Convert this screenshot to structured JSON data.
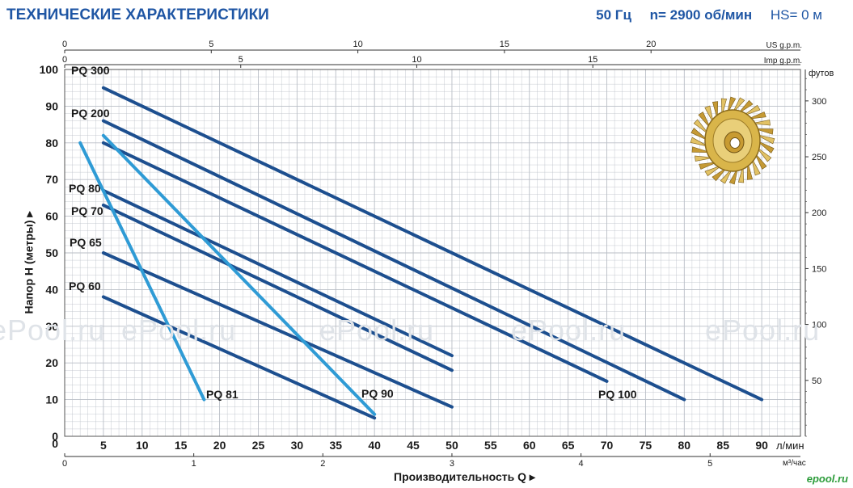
{
  "header": {
    "title": "ТЕХНИЧЕСКИЕ ХАРАКТЕРИСТИКИ",
    "frequency": "50 Гц",
    "speed": "n= 2900 об/мин",
    "suction": "HS= 0 м"
  },
  "watermark_text": "ePool.ru",
  "brand_text": "epool.ru",
  "colors": {
    "dark_series": "#1d4f8f",
    "light_series": "#2f9bd5",
    "grid": "#b9bec6",
    "title": "#1f56a4"
  },
  "chart_data": {
    "type": "line",
    "xlabel": "Производительность Q",
    "ylabel": "Напор H (метры)",
    "xlim": [
      0,
      95
    ],
    "ylim": [
      0,
      100
    ],
    "grid": true,
    "x_ticks": [
      0,
      5,
      10,
      15,
      20,
      25,
      30,
      35,
      40,
      45,
      50,
      55,
      60,
      65,
      70,
      75,
      80,
      85,
      90
    ],
    "x_unit": "л/мин",
    "y_ticks": [
      0,
      10,
      20,
      30,
      40,
      50,
      60,
      70,
      80,
      90,
      100
    ],
    "secondary_axes": [
      {
        "unit": "м³/час",
        "ticks": [
          "0",
          "1",
          "2",
          "3",
          "4",
          "5"
        ],
        "values": [
          0,
          1,
          2,
          3,
          4,
          5
        ]
      },
      {
        "unit": "US g.p.m.",
        "ticks": [
          "0",
          "5",
          "10",
          "15",
          "20"
        ],
        "values": [
          0,
          5,
          10,
          15,
          20
        ]
      },
      {
        "unit": "Imp g.p.m.",
        "ticks": [
          "0",
          "5",
          "10",
          "15"
        ],
        "values": [
          0,
          5,
          10,
          15
        ]
      }
    ],
    "right_axis": {
      "unit": "футов",
      "ticks": [
        "50",
        "100",
        "150",
        "200",
        "250",
        "300"
      ],
      "values": [
        50,
        100,
        150,
        200,
        250,
        300
      ]
    },
    "series": [
      {
        "name": "PQ 300",
        "style": "dark",
        "points": [
          [
            5,
            95
          ],
          [
            90,
            10
          ]
        ]
      },
      {
        "name": "PQ 200",
        "style": "dark",
        "points": [
          [
            5,
            86
          ],
          [
            80,
            10
          ]
        ]
      },
      {
        "name": "PQ 100",
        "style": "dark",
        "points": [
          [
            5,
            80
          ],
          [
            70,
            15
          ]
        ]
      },
      {
        "name": "PQ 80",
        "style": "dark",
        "points": [
          [
            5,
            67
          ],
          [
            50,
            22
          ]
        ]
      },
      {
        "name": "PQ 70",
        "style": "dark",
        "points": [
          [
            5,
            63
          ],
          [
            50,
            18
          ]
        ]
      },
      {
        "name": "PQ 65",
        "style": "dark",
        "points": [
          [
            5,
            50
          ],
          [
            50,
            8
          ]
        ]
      },
      {
        "name": "PQ 60",
        "style": "dark",
        "points": [
          [
            5,
            38
          ],
          [
            40,
            5
          ]
        ]
      },
      {
        "name": "PQ 81",
        "style": "light",
        "points": [
          [
            2,
            80
          ],
          [
            18,
            10
          ]
        ]
      },
      {
        "name": "PQ 90",
        "style": "light",
        "points": [
          [
            5,
            82
          ],
          [
            40,
            6
          ]
        ]
      }
    ]
  }
}
